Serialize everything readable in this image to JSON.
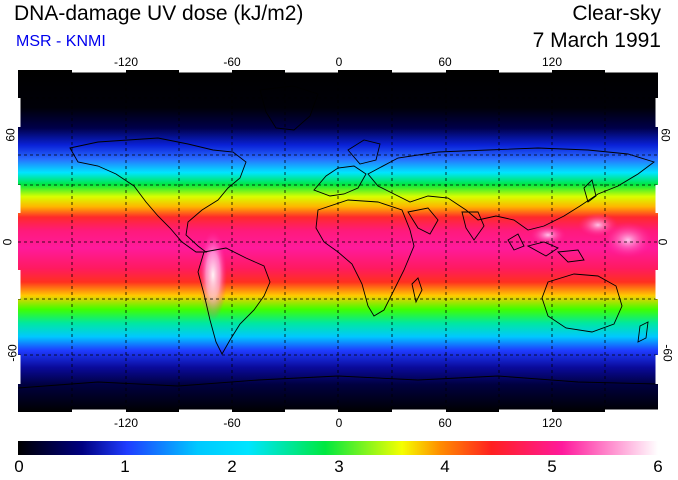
{
  "header": {
    "title": "DNA-damage UV dose (kJ/m2)",
    "source": "MSR - KNMI",
    "sky_condition": "Clear-sky",
    "date": "7 March 1991"
  },
  "map": {
    "longitude_ticks": [
      "-120",
      "-60",
      "0",
      "60",
      "120"
    ],
    "latitude_ticks": [
      "60",
      "0",
      "-60"
    ],
    "projection": "equirectangular",
    "gridlines": "dashed every 30 degrees"
  },
  "colorbar": {
    "labels": [
      "0",
      "1",
      "2",
      "3",
      "4",
      "5",
      "6"
    ],
    "range": [
      0,
      6
    ],
    "colors": [
      "#000000",
      "#000080",
      "#1f3cff",
      "#00e5ff",
      "#00e840",
      "#f5ff00",
      "#ff2020",
      "#ff1a9c",
      "#ffffff"
    ]
  },
  "colors": {
    "title_text": "#000000",
    "source_text": "#0000ee"
  }
}
